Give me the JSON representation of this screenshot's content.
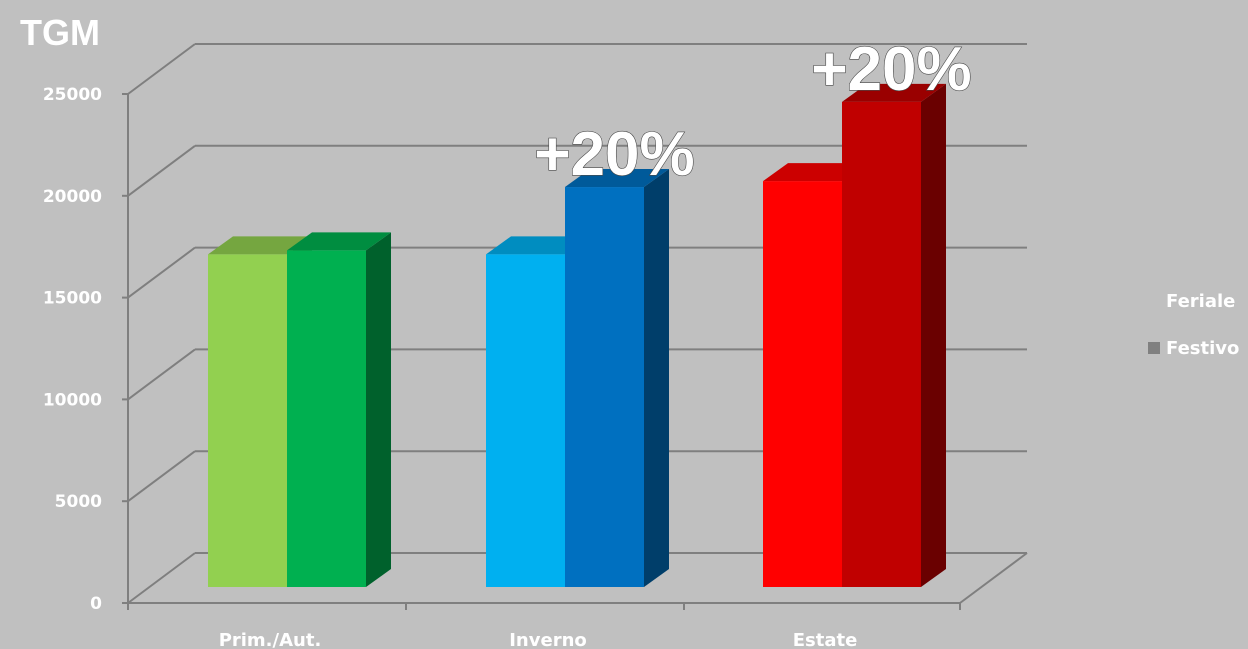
{
  "chart_data": {
    "type": "bar",
    "ylabel": "TGM",
    "ylim": [
      0,
      25000
    ],
    "yticks": [
      "0",
      "5000",
      "10000",
      "15000",
      "20000",
      "25000"
    ],
    "categories": [
      "Prim./Aut.",
      "Inverno",
      "Estate"
    ],
    "series": [
      {
        "name": "Feriale",
        "values": [
          16800,
          16800,
          20500
        ]
      },
      {
        "name": "Festivo",
        "values": [
          17000,
          20200,
          24500
        ]
      }
    ],
    "bar_colors": {
      "Feriale": [
        "#92d050",
        "#00b0f0",
        "#ff0000"
      ],
      "Festivo": [
        "#00b050",
        "#0070c0",
        "#c00000"
      ]
    },
    "annotations": [
      {
        "text": "+20%",
        "category": "Inverno",
        "series": "Festivo"
      },
      {
        "text": "+20%",
        "category": "Estate",
        "series": "Festivo"
      }
    ],
    "legend_position": "right",
    "legend_swatch_colors": [
      "#c0c0c0",
      "#808080"
    ],
    "grid": true,
    "background": "#c0c0c0"
  }
}
